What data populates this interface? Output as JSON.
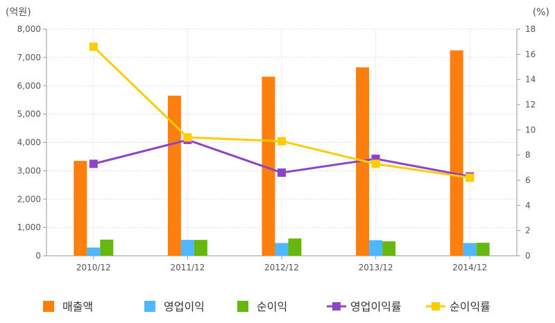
{
  "chart_data": {
    "type": "bar",
    "categories": [
      "2010/12",
      "2011/12",
      "2012/12",
      "2013/12",
      "2014/12"
    ],
    "bar_series": [
      {
        "name": "매출액",
        "values": [
          3350,
          5650,
          6320,
          6650,
          7250
        ],
        "color": "#ff7f0e"
      },
      {
        "name": "영업이익",
        "values": [
          290,
          560,
          450,
          550,
          450
        ],
        "color": "#4db8ff"
      },
      {
        "name": "순이익",
        "values": [
          570,
          560,
          610,
          510,
          460
        ],
        "color": "#66b80e"
      }
    ],
    "line_series": [
      {
        "name": "영업이익률",
        "values": [
          7.3,
          9.2,
          6.6,
          7.7,
          6.3
        ],
        "color": "#8e44c9"
      },
      {
        "name": "순이익률",
        "values": [
          16.6,
          9.4,
          9.1,
          7.3,
          6.2
        ],
        "color": "#ffcc00"
      }
    ],
    "y_left": {
      "unit_label": "(억원)",
      "ylim": [
        0,
        8000
      ],
      "ticks": [
        "0",
        "1,000",
        "2,000",
        "3,000",
        "4,000",
        "5,000",
        "6,000",
        "7,000",
        "8,000"
      ]
    },
    "y_right": {
      "unit_label": "(%)",
      "ylim": [
        0,
        18
      ],
      "ticks": [
        "0",
        "2",
        "4",
        "6",
        "8",
        "10",
        "12",
        "14",
        "16",
        "18"
      ]
    },
    "grid": true,
    "legend_position": "bottom"
  }
}
